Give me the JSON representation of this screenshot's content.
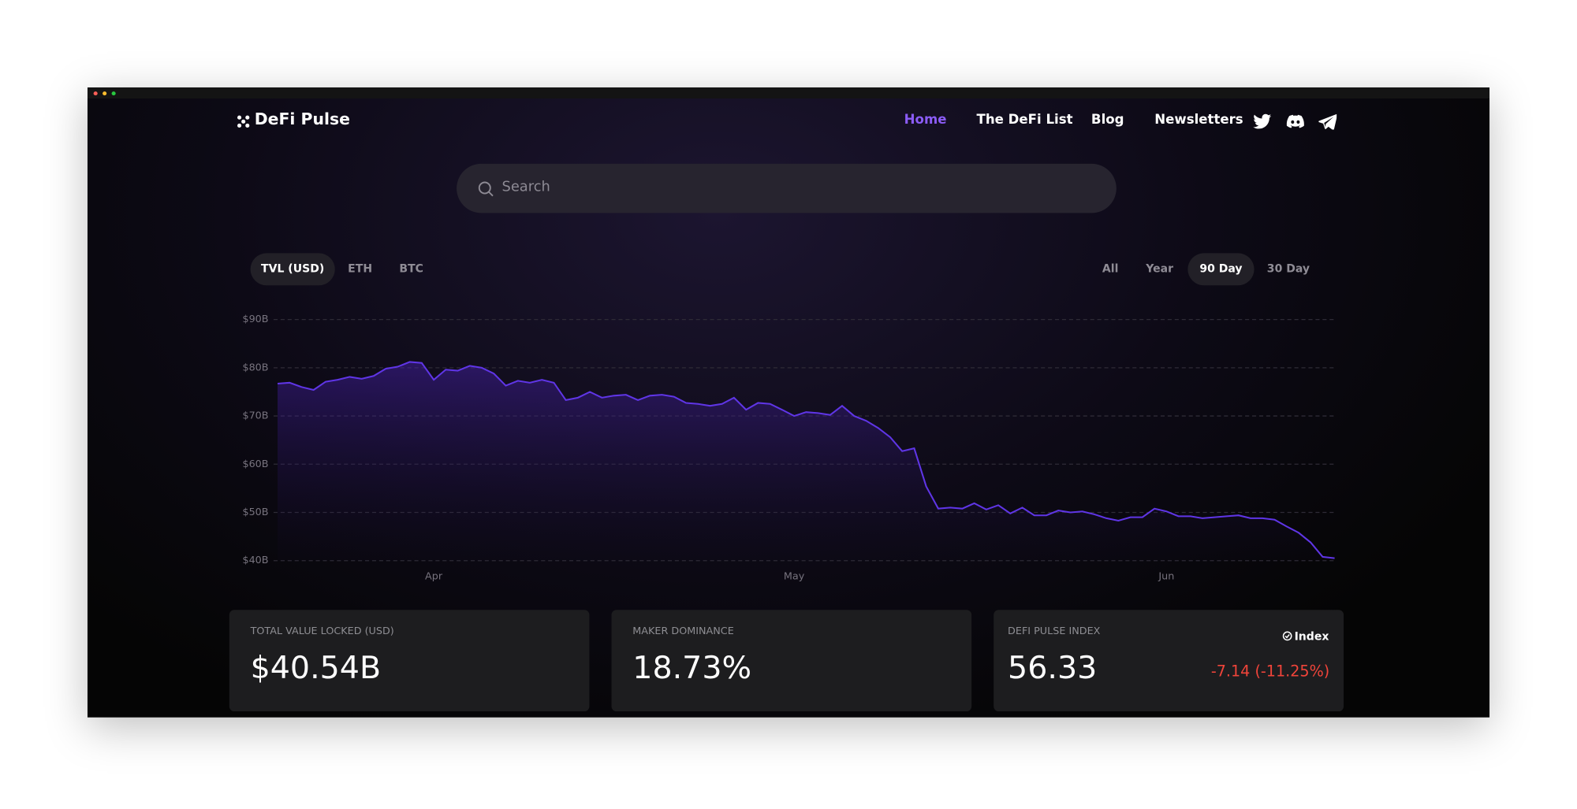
{
  "nav": {
    "logo": "DeFi Pulse",
    "links": [
      "Home",
      "The DeFi List",
      "Blog",
      "Newsletters"
    ]
  },
  "search": {
    "placeholder": "Search"
  },
  "currency_tabs": [
    "TVL (USD)",
    "ETH",
    "BTC"
  ],
  "range_tabs": [
    "All",
    "Year",
    "90 Day",
    "30 Day"
  ],
  "chart_data": {
    "type": "line",
    "color": "#5f35e6",
    "grid": true,
    "categories": [
      null,
      null,
      null,
      null,
      null,
      null,
      null,
      null,
      null,
      null,
      null,
      null,
      null,
      "Apr",
      null,
      null,
      null,
      null,
      null,
      null,
      null,
      null,
      null,
      null,
      null,
      null,
      null,
      null,
      null,
      null,
      null,
      null,
      null,
      null,
      null,
      null,
      null,
      null,
      null,
      null,
      null,
      null,
      null,
      "May",
      null,
      null,
      null,
      null,
      null,
      null,
      null,
      null,
      null,
      null,
      null,
      null,
      null,
      null,
      null,
      null,
      null,
      null,
      null,
      null,
      null,
      null,
      null,
      null,
      null,
      null,
      null,
      null,
      null,
      null,
      "Jun",
      null,
      null,
      null,
      null,
      null,
      null,
      null,
      null,
      null,
      null,
      null,
      null,
      null,
      null
    ],
    "values": [
      76.7,
      76.9,
      76.0,
      75.4,
      77.1,
      77.5,
      78.1,
      77.7,
      78.3,
      79.8,
      80.2,
      81.2,
      81.0,
      77.5,
      79.6,
      79.4,
      80.4,
      80.0,
      78.8,
      76.3,
      77.3,
      76.9,
      77.5,
      76.9,
      73.3,
      73.8,
      75.0,
      73.8,
      74.2,
      74.4,
      73.3,
      74.2,
      74.4,
      74.0,
      72.7,
      72.5,
      72.1,
      72.5,
      73.8,
      71.3,
      72.7,
      72.5,
      71.3,
      70.0,
      70.8,
      70.6,
      70.2,
      72.1,
      70.0,
      69.0,
      67.5,
      65.6,
      62.7,
      63.3,
      55.4,
      50.8,
      51.0,
      50.8,
      51.9,
      50.6,
      51.5,
      49.8,
      51.0,
      49.4,
      49.4,
      50.4,
      50.0,
      50.2,
      49.6,
      48.8,
      48.3,
      49.0,
      49.0,
      50.8,
      50.2,
      49.2,
      49.2,
      48.8,
      49.0,
      49.2,
      49.4,
      48.8,
      48.8,
      48.5,
      47.1,
      45.8,
      43.8,
      40.8,
      40.5
    ],
    "ylim": [
      40,
      90
    ],
    "yticks": [
      {
        "value": 40,
        "label": "$40B"
      },
      {
        "value": 50,
        "label": "$50B"
      },
      {
        "value": 60,
        "label": "$60B"
      },
      {
        "value": 70,
        "label": "$70B"
      },
      {
        "value": 80,
        "label": "$80B"
      },
      {
        "value": 90,
        "label": "$90B"
      }
    ]
  },
  "stats": [
    {
      "label": "TOTAL VALUE LOCKED (USD)",
      "value": "$40.54B"
    },
    {
      "label": "MAKER DOMINANCE",
      "value": "18.73%"
    },
    {
      "label": "DEFI PULSE INDEX",
      "value": "56.33",
      "badge": "Index",
      "change": "-7.14 (-11.25%)"
    }
  ]
}
